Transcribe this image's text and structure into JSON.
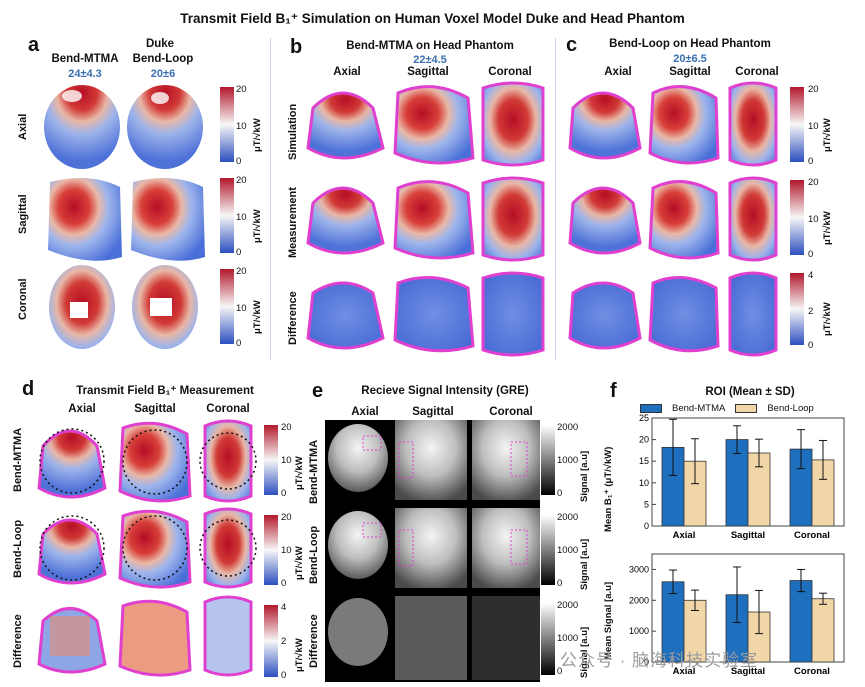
{
  "title": "Transmit Field B₁⁺ Simulation on Human Voxel Model Duke and Head Phantom",
  "panel_a": {
    "label": "a",
    "subtitle": "Duke",
    "cols": [
      "Bend-MTMA",
      "Bend-Loop"
    ],
    "stats": [
      "24±4.3",
      "20±6"
    ],
    "rows": [
      "Axial",
      "Sagittal",
      "Coronal"
    ],
    "cbar_unit": "μT/√kW",
    "cbar_ticks": [
      "20",
      "10",
      "0"
    ]
  },
  "panel_b": {
    "label": "b",
    "subtitle": "Bend-MTMA on Head Phantom",
    "stat": "22±4.5",
    "cols": [
      "Axial",
      "Sagittal",
      "Coronal"
    ],
    "rows": [
      "Simulation",
      "Measurement",
      "Difference"
    ]
  },
  "panel_c": {
    "label": "c",
    "subtitle": "Bend-Loop on Head Phantom",
    "stat": "20±6.5",
    "cols": [
      "Axial",
      "Sagittal",
      "Coronal"
    ],
    "cbar_unit": "μT/√kW",
    "cbar_ticks_top": [
      "20",
      "10",
      "0"
    ],
    "cbar_ticks_bottom": [
      "4",
      "2",
      "0"
    ]
  },
  "panel_d": {
    "label": "d",
    "subtitle": "Transmit Field B₁⁺ Measurement",
    "cols": [
      "Axial",
      "Sagittal",
      "Coronal"
    ],
    "rows": [
      "Bend-MTMA",
      "Bend-Loop",
      "Difference"
    ],
    "cbar_unit": "μT/√kW",
    "cbar_ticks_top": [
      "20",
      "10",
      "0"
    ],
    "cbar_ticks_bottom": [
      "4",
      "2",
      "0"
    ]
  },
  "panel_e": {
    "label": "e",
    "subtitle": "Recieve Signal Intensity (GRE)",
    "cols": [
      "Axial",
      "Sagittal",
      "Coronal"
    ],
    "rows": [
      "Bend-MTMA",
      "Bend-Loop",
      "Difference"
    ],
    "cbar_unit": "Signal [a.u]",
    "cbar_ticks": [
      "2000",
      "1000",
      "0"
    ]
  },
  "panel_f": {
    "label": "f",
    "subtitle": "ROI (Mean ± SD)",
    "legend": [
      "Bend-MTMA",
      "Bend-Loop"
    ],
    "ylabel_top": "Mean B₁⁺ (μT/√kW)",
    "ylabel_bottom": "Mean Signal [a.u]"
  },
  "colors": {
    "mtma": "#1f6fbf",
    "loop": "#f1d7a8",
    "hot": "#c8102e",
    "cold": "#2f4fc4",
    "outline": "#e040d0"
  },
  "chart_data": [
    {
      "type": "bar",
      "categories": [
        "Axial",
        "Sagittal",
        "Coronal"
      ],
      "series": [
        {
          "name": "Bend-MTMA",
          "values": [
            18.2,
            20.0,
            17.8
          ],
          "err": [
            6.5,
            3.2,
            4.5
          ]
        },
        {
          "name": "Bend-Loop",
          "values": [
            15.0,
            16.9,
            15.3
          ],
          "err": [
            5.2,
            3.2,
            4.5
          ]
        }
      ],
      "ylabel": "Mean B₁⁺ (μT/√kW)",
      "ylim": [
        0,
        25
      ],
      "yticks": [
        0,
        5,
        10,
        15,
        20,
        25
      ]
    },
    {
      "type": "bar",
      "categories": [
        "Axial",
        "Sagittal",
        "Coronal"
      ],
      "series": [
        {
          "name": "Bend-MTMA",
          "values": [
            2600,
            2180,
            2640
          ],
          "err": [
            380,
            900,
            360
          ]
        },
        {
          "name": "Bend-Loop",
          "values": [
            2000,
            1620,
            2050
          ],
          "err": [
            330,
            700,
            180
          ]
        }
      ],
      "ylabel": "Mean Signal [a.u]",
      "ylim": [
        0,
        3500
      ],
      "yticks": [
        0,
        1000,
        2000,
        3000
      ]
    }
  ],
  "watermark": "公众号 · 脑海科技实验室"
}
